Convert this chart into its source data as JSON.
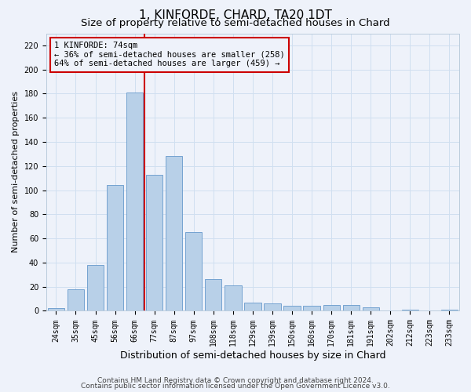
{
  "title": "1, KINFORDE, CHARD, TA20 1DT",
  "subtitle": "Size of property relative to semi-detached houses in Chard",
  "xlabel": "Distribution of semi-detached houses by size in Chard",
  "ylabel": "Number of semi-detached properties",
  "categories": [
    "24sqm",
    "35sqm",
    "45sqm",
    "56sqm",
    "66sqm",
    "77sqm",
    "87sqm",
    "97sqm",
    "108sqm",
    "118sqm",
    "129sqm",
    "139sqm",
    "150sqm",
    "160sqm",
    "170sqm",
    "181sqm",
    "191sqm",
    "202sqm",
    "212sqm",
    "223sqm",
    "233sqm"
  ],
  "values": [
    2,
    18,
    38,
    104,
    181,
    113,
    128,
    65,
    26,
    21,
    7,
    6,
    4,
    4,
    5,
    5,
    3,
    0,
    1,
    0,
    1
  ],
  "bar_color": "#b8d0e8",
  "bar_edge_color": "#6699cc",
  "grid_color": "#d0dff0",
  "background_color": "#eef2fa",
  "property_label": "1 KINFORDE: 74sqm",
  "pct_smaller": 36,
  "count_smaller": 258,
  "pct_larger": 64,
  "count_larger": 459,
  "vline_x_index": 4,
  "vline_color": "#cc0000",
  "annotation_box_edge_color": "#cc0000",
  "ylim": [
    0,
    230
  ],
  "yticks": [
    0,
    20,
    40,
    60,
    80,
    100,
    120,
    140,
    160,
    180,
    200,
    220
  ],
  "footer_line1": "Contains HM Land Registry data © Crown copyright and database right 2024.",
  "footer_line2": "Contains public sector information licensed under the Open Government Licence v3.0.",
  "title_fontsize": 11,
  "subtitle_fontsize": 9.5,
  "xlabel_fontsize": 9,
  "ylabel_fontsize": 8,
  "tick_fontsize": 7,
  "footer_fontsize": 6.5,
  "annotation_fontsize": 7.5
}
